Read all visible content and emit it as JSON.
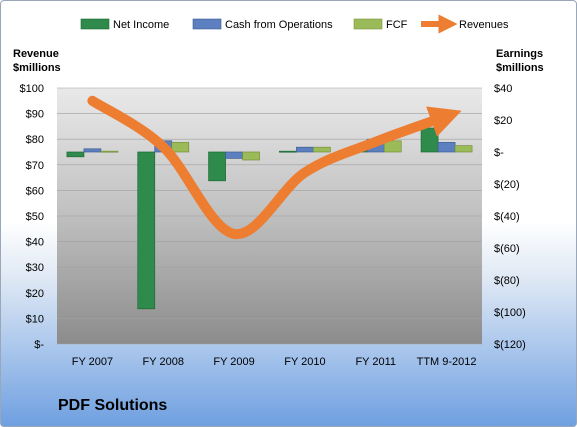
{
  "colors": {
    "net_income": "#2e8b4c",
    "cash_from_operations": "#5b7fbf",
    "fcf": "#9bbb59",
    "revenues": "#ed7d31"
  },
  "chart_data": {
    "type": "bar",
    "title": "PDF Solutions",
    "categories": [
      "FY 2007",
      "FY 2008",
      "FY 2009",
      "FY 2010",
      "FY 2011",
      "TTM 9-2012"
    ],
    "left_axis": {
      "title_line1": "Revenue",
      "title_line2": "$millions",
      "range": [
        0,
        100
      ],
      "ticks": [
        0,
        10,
        20,
        30,
        40,
        50,
        60,
        70,
        80,
        90,
        100
      ],
      "tick_labels": [
        "$-",
        "$10",
        "$20",
        "$30",
        "$40",
        "$50",
        "$60",
        "$70",
        "$80",
        "$90",
        "$100"
      ]
    },
    "right_axis": {
      "title_line1": "Earnings",
      "title_line2": "$millions",
      "range": [
        -120,
        40
      ],
      "ticks": [
        -120,
        -100,
        -80,
        -60,
        -40,
        -20,
        0,
        20,
        40
      ],
      "tick_labels": [
        "$(120)",
        "$(100)",
        "$(80)",
        "$(60)",
        "$(40)",
        "$(20)",
        "$-",
        "$20",
        "$40"
      ]
    },
    "legend_position": "top",
    "series": [
      {
        "name": "Net Income",
        "axis": "right",
        "kind": "bar",
        "values": [
          -3,
          -98,
          -18,
          0.5,
          2,
          15
        ]
      },
      {
        "name": "Cash from Operations",
        "axis": "right",
        "kind": "bar",
        "values": [
          2,
          7,
          -4,
          3,
          8,
          6
        ]
      },
      {
        "name": "FCF",
        "axis": "right",
        "kind": "bar",
        "values": [
          0.5,
          6,
          -5,
          3,
          7,
          4
        ]
      },
      {
        "name": "Revenues",
        "axis": "left",
        "kind": "line",
        "values": [
          95,
          77,
          43,
          67,
          79,
          89
        ]
      }
    ]
  }
}
